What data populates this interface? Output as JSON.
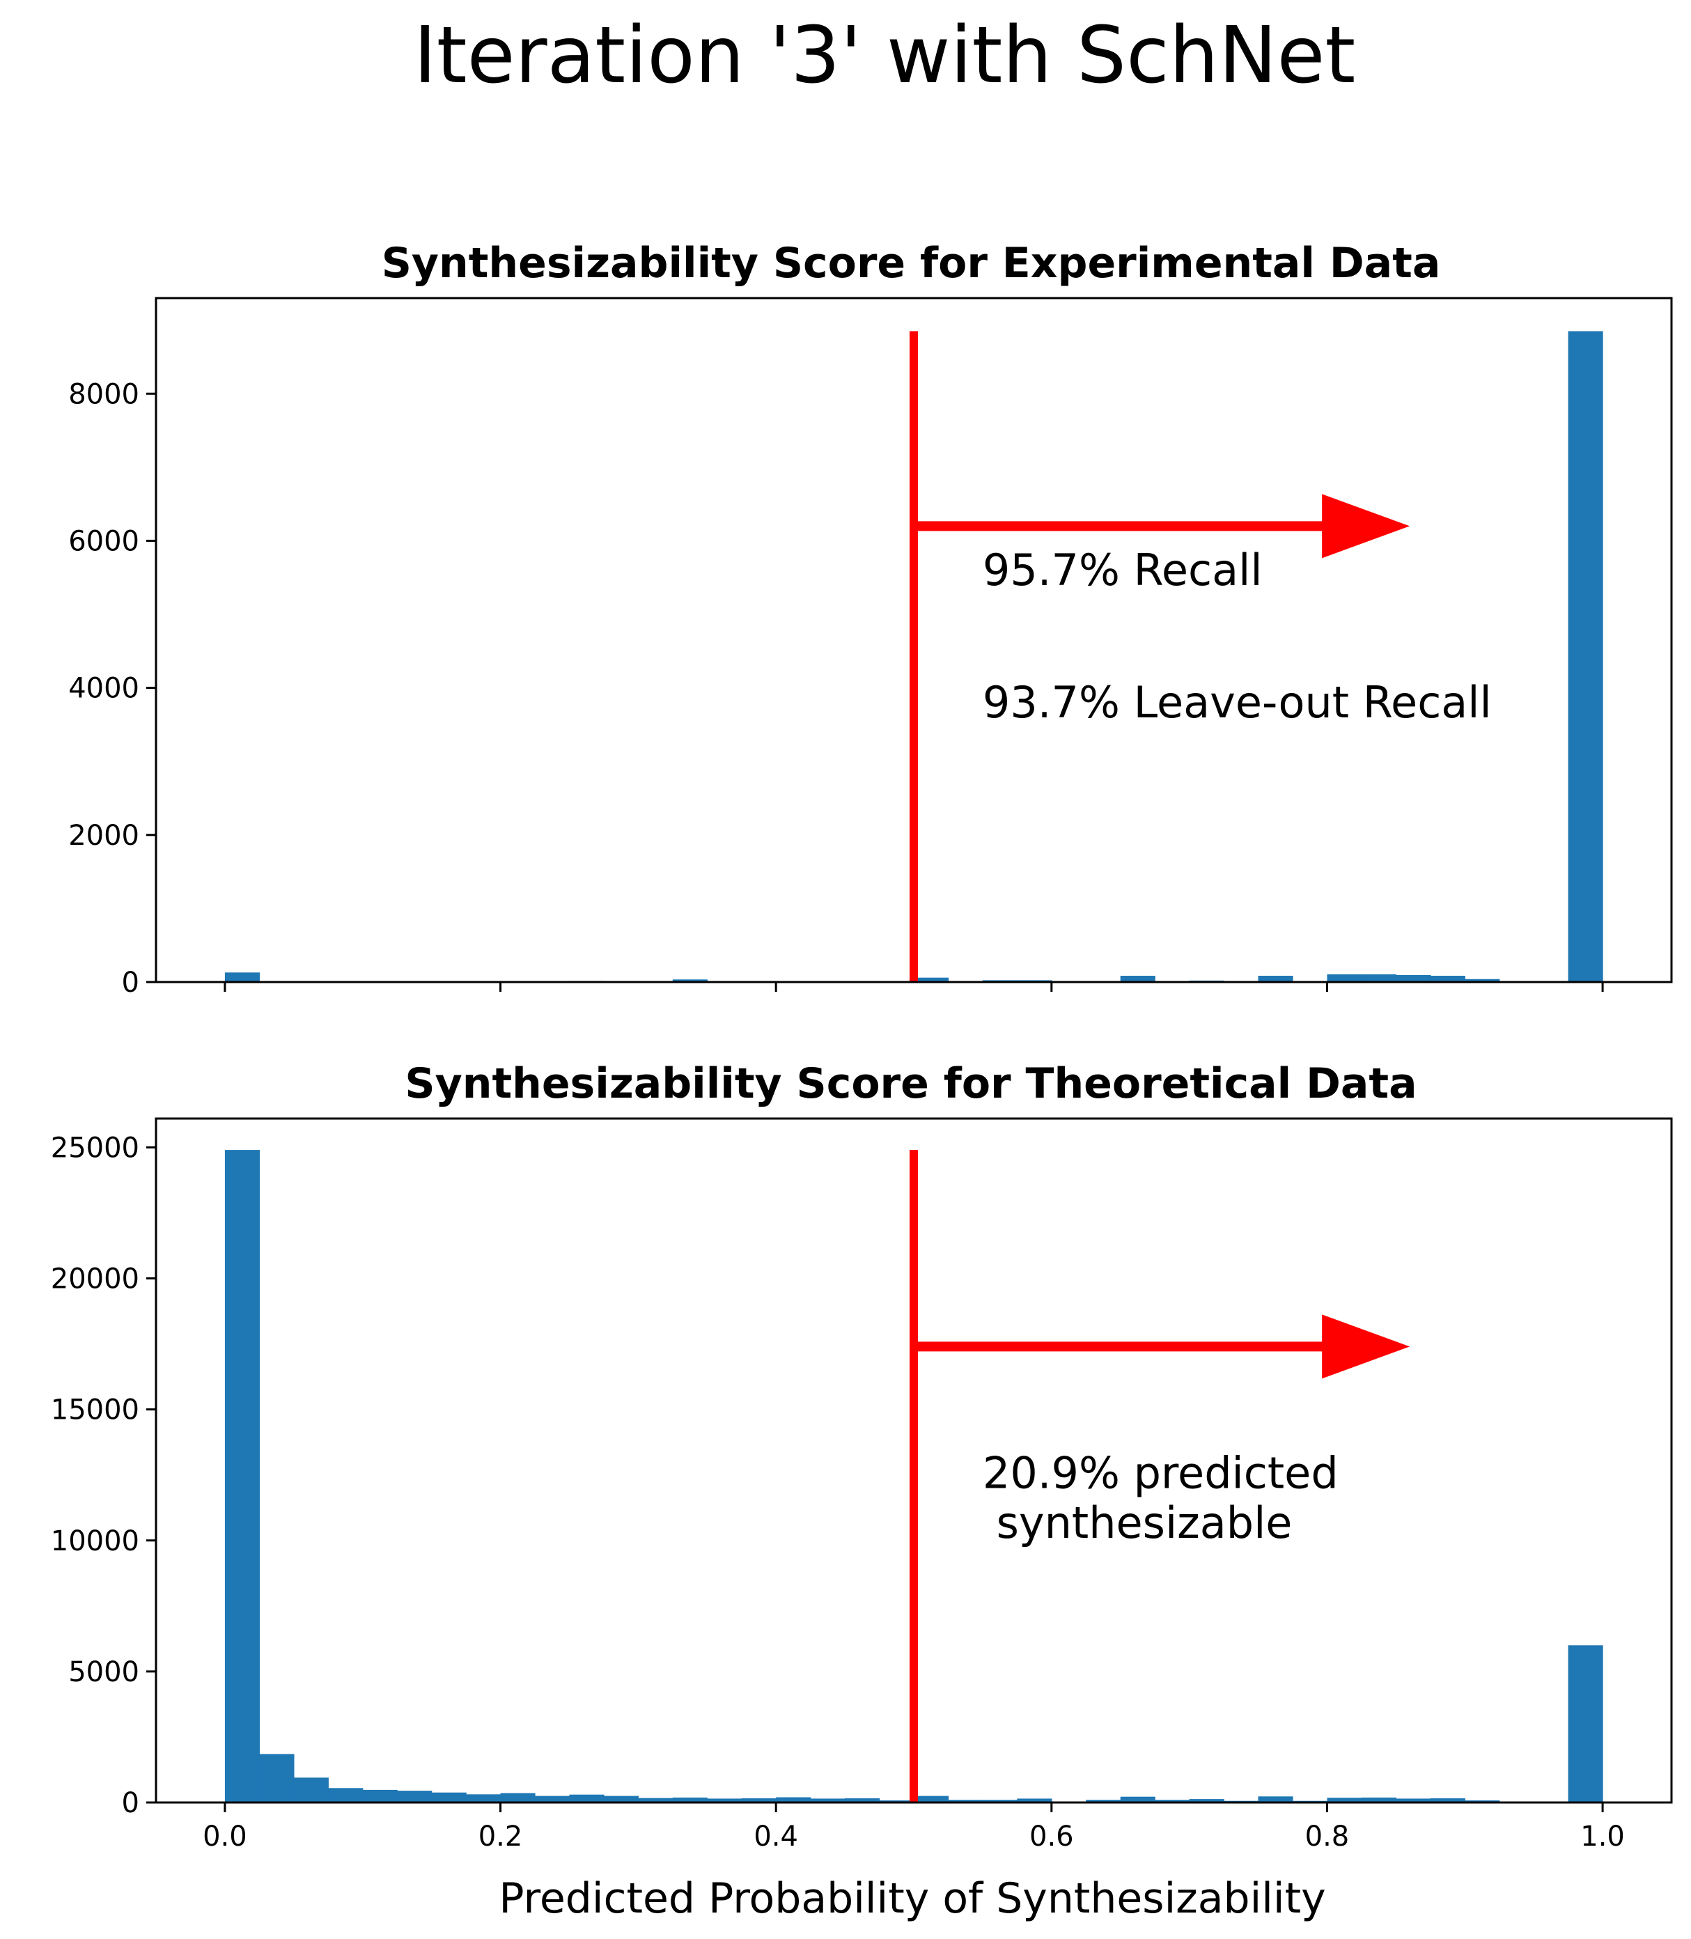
{
  "figure": {
    "title": "Iteration '3' with SchNet",
    "xlabel": "Predicted Probability of Synthesizability"
  },
  "colors": {
    "bar": "#1f77b4",
    "threshold": "#ff0000"
  },
  "chart_data": [
    {
      "type": "bar",
      "title": "Synthesizability Score for Experimental Data",
      "xlabel": "",
      "ylabel": "",
      "xlim": [
        -0.05,
        1.05
      ],
      "ylim": [
        0,
        9300
      ],
      "bin_width": 0.025,
      "x_ticks": [
        "0.0",
        "0.2",
        "0.4",
        "0.6",
        "0.8",
        "1.0"
      ],
      "x_tick_labels_visible": false,
      "y_ticks": [
        "0",
        "2000",
        "4000",
        "6000",
        "8000"
      ],
      "bins": [
        {
          "x": 0.0,
          "value": 130
        },
        {
          "x": 0.025,
          "value": 3
        },
        {
          "x": 0.05,
          "value": 3
        },
        {
          "x": 0.075,
          "value": 3
        },
        {
          "x": 0.1,
          "value": 3
        },
        {
          "x": 0.125,
          "value": 10
        },
        {
          "x": 0.15,
          "value": 3
        },
        {
          "x": 0.175,
          "value": 3
        },
        {
          "x": 0.2,
          "value": 10
        },
        {
          "x": 0.225,
          "value": 3
        },
        {
          "x": 0.25,
          "value": 15
        },
        {
          "x": 0.275,
          "value": 3
        },
        {
          "x": 0.3,
          "value": 3
        },
        {
          "x": 0.325,
          "value": 35
        },
        {
          "x": 0.35,
          "value": 3
        },
        {
          "x": 0.375,
          "value": 3
        },
        {
          "x": 0.4,
          "value": 10
        },
        {
          "x": 0.425,
          "value": 3
        },
        {
          "x": 0.45,
          "value": 3
        },
        {
          "x": 0.475,
          "value": 3
        },
        {
          "x": 0.5,
          "value": 60
        },
        {
          "x": 0.525,
          "value": 3
        },
        {
          "x": 0.55,
          "value": 25
        },
        {
          "x": 0.575,
          "value": 25
        },
        {
          "x": 0.6,
          "value": 3
        },
        {
          "x": 0.625,
          "value": 3
        },
        {
          "x": 0.65,
          "value": 85
        },
        {
          "x": 0.675,
          "value": 3
        },
        {
          "x": 0.7,
          "value": 20
        },
        {
          "x": 0.725,
          "value": 3
        },
        {
          "x": 0.75,
          "value": 85
        },
        {
          "x": 0.775,
          "value": 3
        },
        {
          "x": 0.8,
          "value": 105
        },
        {
          "x": 0.825,
          "value": 105
        },
        {
          "x": 0.85,
          "value": 95
        },
        {
          "x": 0.875,
          "value": 85
        },
        {
          "x": 0.9,
          "value": 40
        },
        {
          "x": 0.925,
          "value": 10
        },
        {
          "x": 0.95,
          "value": 3
        },
        {
          "x": 0.975,
          "value": 8850
        }
      ],
      "threshold": {
        "x": 0.5,
        "top": 8850,
        "arrow_y": 6200,
        "arrow_head_x": 0.86
      },
      "annotations": [
        {
          "text": "95.7% Recall",
          "x": 0.55,
          "y": 5400
        },
        {
          "text": "93.7% Leave-out Recall",
          "x": 0.55,
          "y": 3600
        }
      ]
    },
    {
      "type": "bar",
      "title": "Synthesizability Score for Theoretical Data",
      "xlabel": "Predicted Probability of Synthesizability",
      "ylabel": "",
      "xlim": [
        -0.05,
        1.05
      ],
      "ylim": [
        0,
        26100
      ],
      "bin_width": 0.025,
      "x_ticks": [
        "0.0",
        "0.2",
        "0.4",
        "0.6",
        "0.8",
        "1.0"
      ],
      "x_tick_labels_visible": true,
      "y_ticks": [
        "0",
        "5000",
        "10000",
        "15000",
        "20000",
        "25000"
      ],
      "bins": [
        {
          "x": 0.0,
          "value": 24900
        },
        {
          "x": 0.025,
          "value": 1850
        },
        {
          "x": 0.05,
          "value": 950
        },
        {
          "x": 0.075,
          "value": 550
        },
        {
          "x": 0.1,
          "value": 480
        },
        {
          "x": 0.125,
          "value": 450
        },
        {
          "x": 0.15,
          "value": 380
        },
        {
          "x": 0.175,
          "value": 310
        },
        {
          "x": 0.2,
          "value": 360
        },
        {
          "x": 0.225,
          "value": 250
        },
        {
          "x": 0.25,
          "value": 300
        },
        {
          "x": 0.275,
          "value": 250
        },
        {
          "x": 0.3,
          "value": 170
        },
        {
          "x": 0.325,
          "value": 190
        },
        {
          "x": 0.35,
          "value": 150
        },
        {
          "x": 0.375,
          "value": 160
        },
        {
          "x": 0.4,
          "value": 200
        },
        {
          "x": 0.425,
          "value": 150
        },
        {
          "x": 0.45,
          "value": 160
        },
        {
          "x": 0.475,
          "value": 80
        },
        {
          "x": 0.5,
          "value": 250
        },
        {
          "x": 0.525,
          "value": 100
        },
        {
          "x": 0.55,
          "value": 100
        },
        {
          "x": 0.575,
          "value": 150
        },
        {
          "x": 0.6,
          "value": 40
        },
        {
          "x": 0.625,
          "value": 100
        },
        {
          "x": 0.65,
          "value": 220
        },
        {
          "x": 0.675,
          "value": 100
        },
        {
          "x": 0.7,
          "value": 130
        },
        {
          "x": 0.725,
          "value": 60
        },
        {
          "x": 0.75,
          "value": 230
        },
        {
          "x": 0.775,
          "value": 60
        },
        {
          "x": 0.8,
          "value": 180
        },
        {
          "x": 0.825,
          "value": 190
        },
        {
          "x": 0.85,
          "value": 150
        },
        {
          "x": 0.875,
          "value": 160
        },
        {
          "x": 0.9,
          "value": 80
        },
        {
          "x": 0.925,
          "value": 20
        },
        {
          "x": 0.95,
          "value": 20
        },
        {
          "x": 0.975,
          "value": 6000
        }
      ],
      "threshold": {
        "x": 0.5,
        "top": 24900,
        "arrow_y": 17400,
        "arrow_head_x": 0.86
      },
      "annotations": [
        {
          "text": "20.9% predicted",
          "x": 0.55,
          "y": 12000
        },
        {
          "text": " synthesizable",
          "x": 0.55,
          "y": 10100
        }
      ]
    }
  ]
}
